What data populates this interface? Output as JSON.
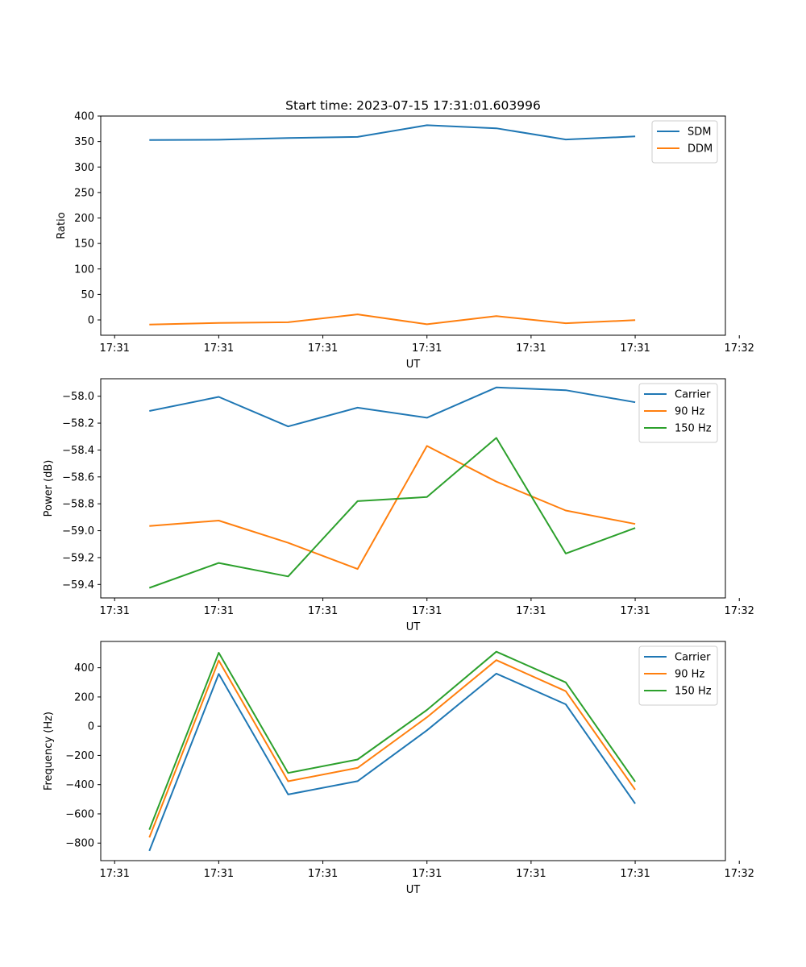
{
  "title": "Start time: 2023-07-15 17:31:01.603996",
  "chart_data": [
    {
      "type": "line",
      "title": "Start time: 2023-07-15 17:31:01.603996",
      "xlabel": "UT",
      "ylabel": "Ratio",
      "x": [
        1,
        2,
        3,
        4,
        5,
        6,
        7,
        8
      ],
      "xlim": [
        0.3,
        9.3
      ],
      "xticks": [
        0.5,
        2.0,
        3.5,
        5.0,
        6.5,
        8.0,
        9.5
      ],
      "xtick_labels": [
        "17:31",
        "17:31",
        "17:31",
        "17:31",
        "17:31",
        "17:31",
        "17:32"
      ],
      "ylim": [
        -30,
        400
      ],
      "yticks": [
        0,
        50,
        100,
        150,
        200,
        250,
        300,
        350,
        400
      ],
      "ytick_labels": [
        "0",
        "50",
        "100",
        "150",
        "200",
        "250",
        "300",
        "350",
        "400"
      ],
      "legend_position": "top-right",
      "series": [
        {
          "name": "SDM",
          "color": "#1f77b4",
          "values": [
            353,
            353.5,
            357,
            359,
            382,
            376,
            354,
            360
          ]
        },
        {
          "name": "DDM",
          "color": "#ff7f0e",
          "values": [
            -9,
            -6,
            -4.5,
            11,
            -8.5,
            7.5,
            -6.5,
            -0.5
          ]
        }
      ]
    },
    {
      "type": "line",
      "title": "",
      "xlabel": "UT",
      "ylabel": "Power (dB)",
      "x": [
        1,
        2,
        3,
        4,
        5,
        6,
        7,
        8
      ],
      "xlim": [
        0.3,
        9.3
      ],
      "xticks": [
        0.5,
        2.0,
        3.5,
        5.0,
        6.5,
        8.0,
        9.5
      ],
      "xtick_labels": [
        "17:31",
        "17:31",
        "17:31",
        "17:31",
        "17:31",
        "17:31",
        "17:32"
      ],
      "ylim": [
        -59.5,
        -57.87
      ],
      "yticks": [
        -59.4,
        -59.2,
        -59.0,
        -58.8,
        -58.6,
        -58.4,
        -58.2,
        -58.0
      ],
      "ytick_labels": [
        "−59.4",
        "−59.2",
        "−59.0",
        "−58.8",
        "−58.6",
        "−58.4",
        "−58.2",
        "−58.0"
      ],
      "legend_position": "top-right",
      "series": [
        {
          "name": "Carrier",
          "color": "#1f77b4",
          "values": [
            -58.11,
            -58.005,
            -58.225,
            -58.085,
            -58.16,
            -57.935,
            -57.955,
            -58.045
          ]
        },
        {
          "name": "90 Hz",
          "color": "#ff7f0e",
          "values": [
            -58.965,
            -58.925,
            -59.09,
            -59.285,
            -58.37,
            -58.635,
            -58.85,
            -58.95
          ]
        },
        {
          "name": "150 Hz",
          "color": "#2ca02c",
          "values": [
            -59.425,
            -59.24,
            -59.34,
            -58.78,
            -58.75,
            -58.31,
            -59.17,
            -58.98
          ]
        }
      ]
    },
    {
      "type": "line",
      "title": "",
      "xlabel": "UT",
      "ylabel": "Frequency (Hz)",
      "x": [
        1,
        2,
        3,
        4,
        5,
        6,
        7,
        8
      ],
      "xlim": [
        0.3,
        9.3
      ],
      "xticks": [
        0.5,
        2.0,
        3.5,
        5.0,
        6.5,
        8.0,
        9.5
      ],
      "xtick_labels": [
        "17:31",
        "17:31",
        "17:31",
        "17:31",
        "17:31",
        "17:31",
        "17:32"
      ],
      "ylim": [
        -920,
        580
      ],
      "yticks": [
        -800,
        -600,
        -400,
        -200,
        0,
        200,
        400
      ],
      "ytick_labels": [
        "−800",
        "−600",
        "−400",
        "−200",
        "0",
        "200",
        "400"
      ],
      "legend_position": "top-right",
      "series": [
        {
          "name": "Carrier",
          "color": "#1f77b4",
          "values": [
            -853,
            358,
            -467,
            -376,
            -28,
            360,
            150,
            -530
          ]
        },
        {
          "name": "90 Hz",
          "color": "#ff7f0e",
          "values": [
            -762,
            450,
            -377,
            -285,
            61,
            452,
            240,
            -435
          ]
        },
        {
          "name": "150 Hz",
          "color": "#2ca02c",
          "values": [
            -708,
            503,
            -320,
            -228,
            111,
            510,
            300,
            -380
          ]
        }
      ]
    }
  ]
}
